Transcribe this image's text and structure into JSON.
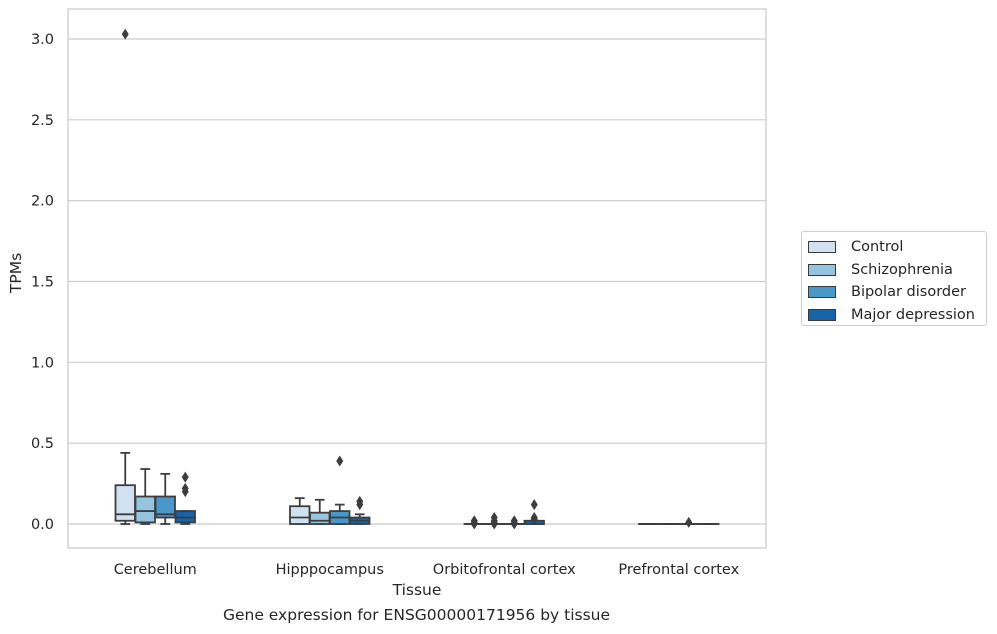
{
  "chart_data": {
    "type": "box",
    "xlabel": "Tissue",
    "ylabel": "TPMs",
    "ylim": [
      -0.15,
      3.2
    ],
    "yticks": [
      0.0,
      0.5,
      1.0,
      1.5,
      2.0,
      2.5,
      3.0
    ],
    "ytick_labels": [
      "0.0",
      "0.5",
      "1.0",
      "1.5",
      "2.0",
      "2.5",
      "3.0"
    ],
    "grid": "horizontal",
    "legend_position": "right",
    "categories": [
      "Cerebellum",
      "Hipppocampus",
      "Orbitofrontal cortex",
      "Prefrontal cortex"
    ],
    "series": [
      {
        "name": "Control",
        "color": "#d0e1f2",
        "boxes": [
          {
            "whislo": 0.0,
            "q1": 0.02,
            "med": 0.06,
            "q3": 0.24,
            "whishi": 0.44,
            "fliers": [
              3.03
            ]
          },
          {
            "whislo": 0.0,
            "q1": 0.0,
            "med": 0.04,
            "q3": 0.11,
            "whishi": 0.16,
            "fliers": []
          },
          {
            "whislo": 0.0,
            "q1": 0.0,
            "med": 0.0,
            "q3": 0.0,
            "whishi": 0.0,
            "fliers": [
              0.0,
              0.01,
              0.02
            ]
          },
          {
            "whislo": 0.0,
            "q1": 0.0,
            "med": 0.0,
            "q3": 0.0,
            "whishi": 0.0,
            "fliers": []
          }
        ]
      },
      {
        "name": "Schizophrenia",
        "color": "#94c4df",
        "boxes": [
          {
            "whislo": 0.0,
            "q1": 0.01,
            "med": 0.08,
            "q3": 0.17,
            "whishi": 0.34,
            "fliers": []
          },
          {
            "whislo": 0.0,
            "q1": 0.0,
            "med": 0.02,
            "q3": 0.07,
            "whishi": 0.15,
            "fliers": []
          },
          {
            "whislo": 0.0,
            "q1": 0.0,
            "med": 0.0,
            "q3": 0.0,
            "whishi": 0.0,
            "fliers": [
              0.0,
              0.01,
              0.02,
              0.04
            ]
          },
          {
            "whislo": 0.0,
            "q1": 0.0,
            "med": 0.0,
            "q3": 0.0,
            "whishi": 0.0,
            "fliers": []
          }
        ]
      },
      {
        "name": "Bipolar disorder",
        "color": "#4a98c9",
        "boxes": [
          {
            "whislo": 0.0,
            "q1": 0.04,
            "med": 0.06,
            "q3": 0.17,
            "whishi": 0.31,
            "fliers": []
          },
          {
            "whislo": 0.0,
            "q1": 0.0,
            "med": 0.04,
            "q3": 0.08,
            "whishi": 0.12,
            "fliers": [
              0.39
            ]
          },
          {
            "whislo": 0.0,
            "q1": 0.0,
            "med": 0.0,
            "q3": 0.0,
            "whishi": 0.0,
            "fliers": [
              0.0,
              0.01,
              0.02
            ]
          },
          {
            "whislo": 0.0,
            "q1": 0.0,
            "med": 0.0,
            "q3": 0.0,
            "whishi": 0.0,
            "fliers": [
              0.01
            ]
          }
        ]
      },
      {
        "name": "Major depression",
        "color": "#1764ab",
        "boxes": [
          {
            "whislo": 0.0,
            "q1": 0.01,
            "med": 0.04,
            "q3": 0.08,
            "whishi": 0.08,
            "fliers": [
              0.2,
              0.22,
              0.29
            ]
          },
          {
            "whislo": 0.0,
            "q1": 0.0,
            "med": 0.02,
            "q3": 0.04,
            "whishi": 0.06,
            "fliers": [
              0.12,
              0.14
            ]
          },
          {
            "whislo": 0.0,
            "q1": 0.0,
            "med": 0.0,
            "q3": 0.02,
            "whishi": 0.02,
            "fliers": [
              0.03,
              0.04,
              0.12
            ]
          },
          {
            "whislo": 0.0,
            "q1": 0.0,
            "med": 0.0,
            "q3": 0.0,
            "whishi": 0.0,
            "fliers": []
          }
        ]
      }
    ],
    "caption": "Gene expression for ENSG00000171956 by tissue"
  }
}
